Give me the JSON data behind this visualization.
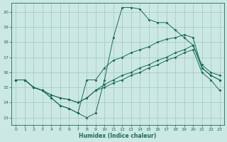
{
  "xlabel": "Humidex (Indice chaleur)",
  "xlim": [
    -0.5,
    23.5
  ],
  "ylim": [
    12.5,
    20.6
  ],
  "yticks": [
    13,
    14,
    15,
    16,
    17,
    18,
    19,
    20
  ],
  "xticks": [
    0,
    1,
    2,
    3,
    4,
    5,
    6,
    7,
    8,
    9,
    10,
    11,
    12,
    13,
    14,
    15,
    16,
    17,
    18,
    19,
    20,
    21,
    22,
    23
  ],
  "background_color": "#cce8e2",
  "grid_color": "#a0c8c0",
  "line_color": "#1a6b5a",
  "lines": [
    [
      15.5,
      15.5,
      15.0,
      14.8,
      14.3,
      13.8,
      13.6,
      13.3,
      13.0,
      13.3,
      15.5,
      18.3,
      20.3,
      20.3,
      20.2,
      19.5,
      19.3,
      19.3,
      18.8,
      18.3,
      17.8,
      16.5,
      16.0,
      15.8
    ],
    [
      15.5,
      15.5,
      15.0,
      14.8,
      14.3,
      13.8,
      13.6,
      13.3,
      15.5,
      15.5,
      16.3,
      16.8,
      17.0,
      17.3,
      17.5,
      17.7,
      18.0,
      18.2,
      18.3,
      18.5,
      18.3,
      16.3,
      15.8,
      15.5
    ],
    [
      15.5,
      15.5,
      15.0,
      14.8,
      14.5,
      14.3,
      14.2,
      14.0,
      14.3,
      14.8,
      15.2,
      15.5,
      15.8,
      16.0,
      16.3,
      16.5,
      16.8,
      17.0,
      17.3,
      17.5,
      17.8,
      16.3,
      15.8,
      15.5
    ],
    [
      15.5,
      15.5,
      15.0,
      14.8,
      14.5,
      14.3,
      14.2,
      14.0,
      14.3,
      14.8,
      15.0,
      15.3,
      15.5,
      15.8,
      16.0,
      16.3,
      16.5,
      16.8,
      17.0,
      17.3,
      17.5,
      16.0,
      15.5,
      14.8
    ]
  ],
  "marker_indices": [
    0,
    1,
    2,
    3,
    4,
    5,
    6,
    7,
    8,
    9,
    10,
    11,
    12,
    13,
    14,
    15,
    16,
    17,
    18,
    19,
    20,
    21,
    22,
    23
  ]
}
